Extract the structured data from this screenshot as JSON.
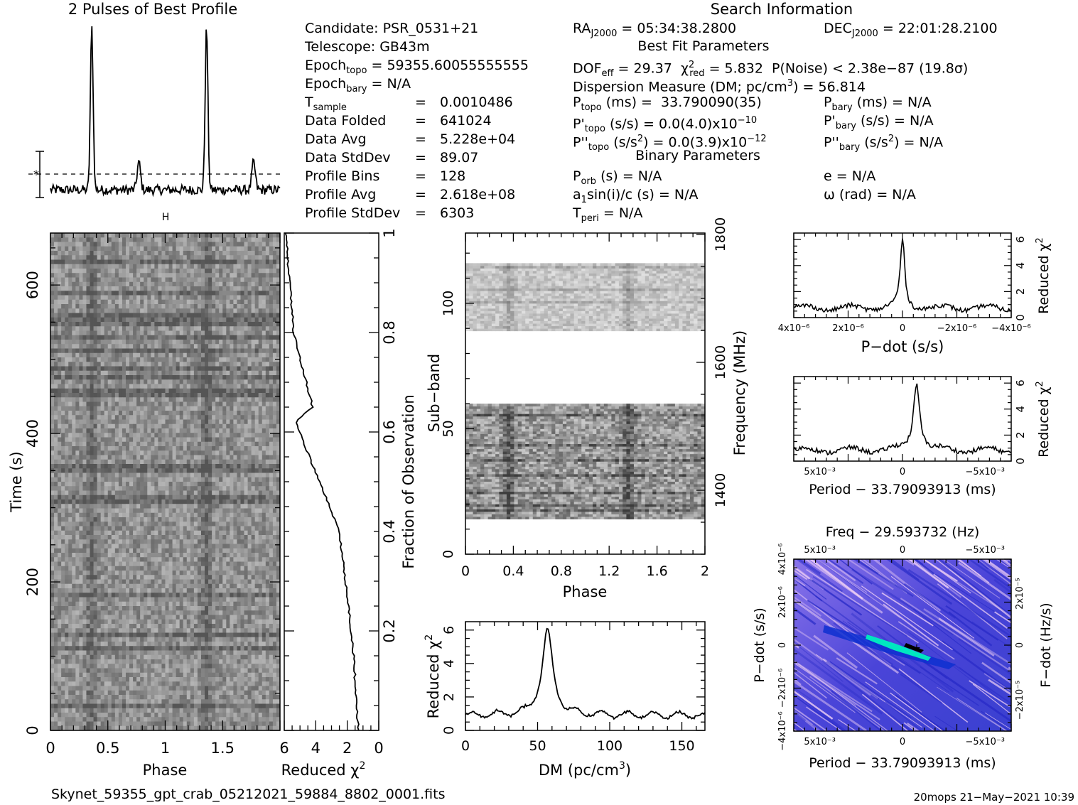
{
  "titles": {
    "profile": "2 Pulses of Best Profile",
    "search_info": "Search Information",
    "best_fit": "Best Fit Parameters",
    "binary": "Binary Parameters",
    "freq_title": "Freq − 29.593732 (Hz)"
  },
  "footer": {
    "filename": "Skynet_59355_gpt_crab_05212021_59884_8802_0001.fits",
    "stamp": "20mops 21−May−2021 10:39"
  },
  "info": {
    "candidate": "Candidate:  PSR_0531+21",
    "telescope": "Telescope:  GB43m",
    "epoch_topo": "59355.60055555555",
    "epoch_bary": "N/A",
    "rows": [
      {
        "label": "Data Folded",
        "value": "641024"
      },
      {
        "label": "Data Avg",
        "value": "5.228e+04"
      },
      {
        "label": "Data StdDev",
        "value": "89.07"
      },
      {
        "label": "Profile Bins",
        "value": "128"
      },
      {
        "label": "Profile Avg",
        "value": "2.618e+08"
      },
      {
        "label": "Profile StdDev",
        "value": "6303"
      }
    ],
    "t_sample": "0.0010486",
    "ra": "05:34:38.2800",
    "dec": "22:01:28.2100",
    "dof": "29.37",
    "chi2": "5.832",
    "pnoise": "P(Noise) < 2.38e−87  (19.8σ)",
    "dm": "56.814",
    "p_topo": "33.790090(35)",
    "p_bary": "N/A",
    "pd_topo": "0.0(4.0)x10",
    "pd_topo_exp": "−10",
    "pd_bary": "N/A",
    "pdd_topo": "0.0(3.9)x10",
    "pdd_topo_exp": "−12",
    "pdd_bary": "N/A",
    "p_orb": "N/A",
    "e": "N/A",
    "a1sini": "N/A",
    "omega": "N/A",
    "t_peri": "N/A"
  },
  "axes": {
    "phase": "Phase",
    "time": "Time (s)",
    "reduced_chi2": "Reduced χ",
    "fraction": "Fraction of Observation",
    "subband": "Sub−band",
    "frequency": "Frequency (MHz)",
    "dm": "DM (pc/cm",
    "pdot": "P−dot (s/s)",
    "period": "Period − 33.79093913 (ms)",
    "fdot": "F−dot (Hz/s)"
  },
  "colors": {
    "ink": "#000000",
    "grid_cold": "#1a22c8",
    "grid_hot": "#00ffc8"
  },
  "chart_data": [
    {
      "id": "profile",
      "type": "line",
      "title": "2 Pulses of Best Profile",
      "xlim": [
        0,
        2
      ],
      "peaks_phase": [
        0.36,
        1.36
      ],
      "secondary_phase": [
        0.77,
        1.77
      ]
    },
    {
      "id": "time_phase",
      "type": "heatmap",
      "xlabel": "Phase",
      "ylabel": "Time (s)",
      "x": [
        0,
        0.5,
        1,
        1.5
      ],
      "y": [
        0,
        200,
        400,
        600
      ],
      "xlim": [
        0,
        2
      ],
      "ylim": [
        0,
        670
      ]
    },
    {
      "id": "chi2_time",
      "type": "line",
      "xlabel": "Reduced χ2",
      "ylabel": "Fraction of Observation",
      "xticks": [
        6,
        4,
        2,
        0
      ],
      "yticks": [
        0.2,
        0.4,
        0.6,
        0.8,
        1
      ],
      "x": [
        1.3,
        1.6,
        2.1,
        2.5,
        3.5,
        5.3,
        4.2,
        5.4,
        5.9
      ],
      "y": [
        0,
        0.15,
        0.3,
        0.4,
        0.48,
        0.62,
        0.65,
        0.8,
        1.0
      ]
    },
    {
      "id": "subband",
      "type": "heatmap",
      "xlabel": "Phase",
      "ylabel": "Sub−band",
      "y2label": "Frequency (MHz)",
      "xticks": [
        0,
        0.4,
        0.8,
        1.2,
        1.6,
        2
      ],
      "yticks": [
        0,
        50,
        100
      ],
      "y2ticks": [
        1400,
        1600,
        1800
      ],
      "xlim": [
        0,
        2
      ],
      "ylim": [
        0,
        128
      ]
    },
    {
      "id": "dm_curve",
      "type": "line",
      "xlabel": "DM (pc/cm3)",
      "ylabel": "Reduced χ2",
      "xticks": [
        0,
        50,
        100,
        150
      ],
      "yticks": [
        0,
        2,
        4,
        6
      ],
      "xlim": [
        0,
        166
      ],
      "ylim": [
        0,
        6.5
      ],
      "peak": {
        "x": 56.8,
        "y": 5.9
      },
      "baseline": 0.9
    },
    {
      "id": "pdot_curve",
      "type": "line",
      "xlabel": "P−dot (s/s)",
      "ylabel": "Reduced χ2",
      "xticks": [
        "4x10⁻⁶",
        "2x10⁻⁶",
        "0",
        "−2x10⁻⁶",
        "−4x10⁻⁶"
      ],
      "yticks": [
        0,
        2,
        4,
        6
      ],
      "ylim": [
        0,
        6.5
      ],
      "peak": {
        "x": 0,
        "y": 6.0
      },
      "baseline": 0.7
    },
    {
      "id": "period_curve",
      "type": "line",
      "xlabel": "Period − 33.79093913 (ms)",
      "ylabel": "Reduced χ2",
      "xticks": [
        "5x10⁻³",
        "0",
        "−5x10⁻³"
      ],
      "yticks": [
        0,
        2,
        4,
        6
      ],
      "ylim": [
        0,
        6.5
      ],
      "peak": {
        "x": -0.0008,
        "y": 6.0
      },
      "baseline": 0.8
    },
    {
      "id": "p_pdot",
      "type": "heatmap",
      "title": "Freq − 29.593732 (Hz)",
      "xlabel": "Period − 33.79093913 (ms)",
      "ylabel": "P−dot (s/s)",
      "y2label": "F−dot (Hz/s)",
      "xticks": [
        "5x10⁻³",
        "0",
        "−5x10⁻³"
      ],
      "yticks": [
        "4x10⁻⁶",
        "2x10⁻⁶",
        "0",
        "−2x10⁻⁶",
        "−4x10⁻⁶"
      ],
      "y2ticks": [
        "2x10⁻⁵",
        "0",
        "−2x10⁻⁵"
      ]
    }
  ]
}
